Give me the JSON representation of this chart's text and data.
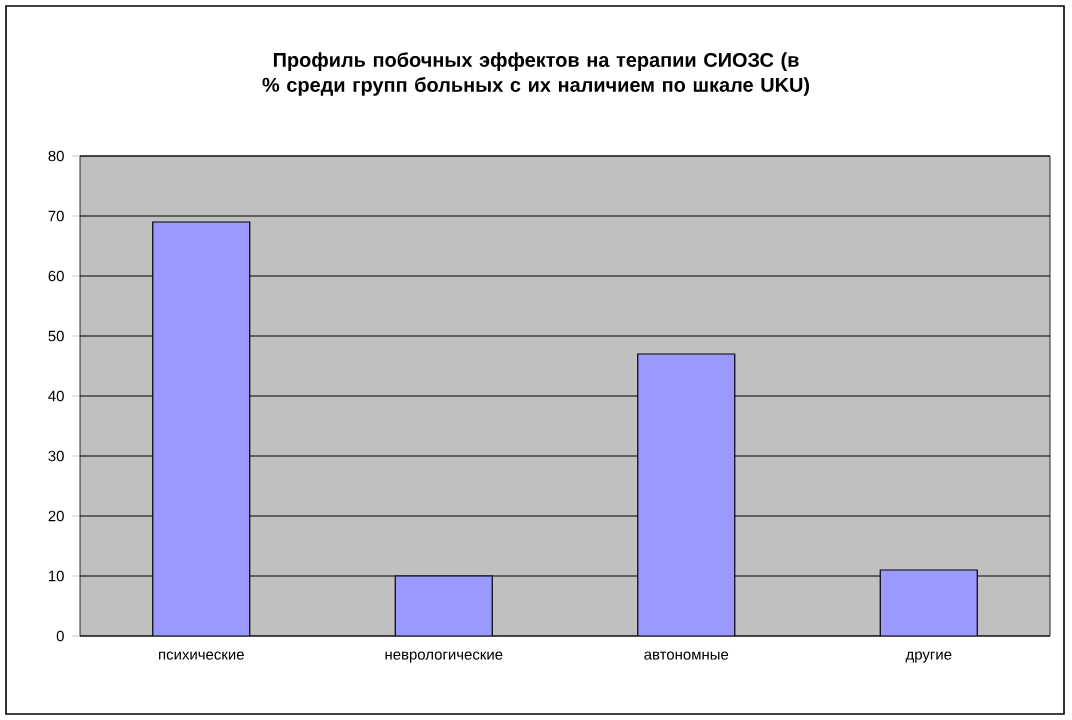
{
  "chart_data": {
    "type": "bar",
    "title": "Профиль побочных эффектов на терапии СИОЗС (в % среди групп больных с их наличием по шкале UKU)",
    "categories": [
      "психические",
      "неврологические",
      "автономные",
      "другие"
    ],
    "values": [
      69,
      10,
      47,
      11
    ],
    "color": "#9999ff",
    "ylim": [
      0,
      80
    ],
    "yticks": [
      0,
      10,
      20,
      30,
      40,
      50,
      60,
      70,
      80
    ],
    "grid": "y"
  }
}
